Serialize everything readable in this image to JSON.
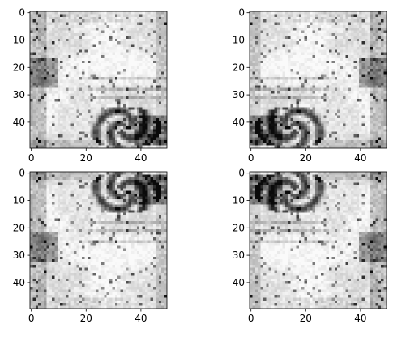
{
  "chart_data": {
    "type": "heatmap",
    "colormap": "gray",
    "grid": false,
    "note_panels": "2x2 grid of the same grayscale image with flips",
    "panels": [
      {
        "name": "panel-top-left",
        "transform": "original",
        "xlim": [
          0,
          50
        ],
        "ylim": [
          50,
          0
        ],
        "xticks": [
          0,
          20,
          40
        ],
        "yticks": [
          0,
          10,
          20,
          30,
          40
        ]
      },
      {
        "name": "panel-top-right",
        "transform": "horizontal-flip",
        "xlim": [
          0,
          50
        ],
        "ylim": [
          50,
          0
        ],
        "xticks": [
          0,
          20,
          40
        ],
        "yticks": [
          0,
          10,
          20,
          30,
          40
        ]
      },
      {
        "name": "panel-bottom-left",
        "transform": "vertical-flip",
        "xlim": [
          0,
          50
        ],
        "ylim": [
          50,
          0
        ],
        "xticks": [
          0,
          20,
          40
        ],
        "yticks": [
          0,
          10,
          20,
          30,
          40
        ]
      },
      {
        "name": "panel-bottom-right",
        "transform": "horizontal-and-vertical-flip",
        "xlim": [
          0,
          50
        ],
        "ylim": [
          50,
          0
        ],
        "xticks": [
          0,
          20,
          40
        ],
        "yticks": [
          0,
          10,
          20,
          30,
          40
        ]
      }
    ]
  }
}
